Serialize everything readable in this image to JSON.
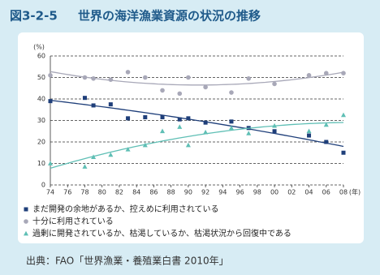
{
  "chart_data": {
    "type": "scatter",
    "figure_number": "図3-2-5",
    "title": "世界の海洋漁業資源の状況の推移",
    "ylabel": "(%)",
    "xlabel": "(年)",
    "xlim": [
      1974,
      2008
    ],
    "xticks": [
      {
        "value": 1974,
        "label": "74"
      },
      {
        "value": 1976,
        "label": "76"
      },
      {
        "value": 1978,
        "label": "78"
      },
      {
        "value": 1980,
        "label": "80"
      },
      {
        "value": 1982,
        "label": "82"
      },
      {
        "value": 1984,
        "label": "84"
      },
      {
        "value": 1986,
        "label": "86"
      },
      {
        "value": 1988,
        "label": "88"
      },
      {
        "value": 1990,
        "label": "90"
      },
      {
        "value": 1992,
        "label": "92"
      },
      {
        "value": 1994,
        "label": "94"
      },
      {
        "value": 1996,
        "label": "96"
      },
      {
        "value": 1998,
        "label": "98"
      },
      {
        "value": 2000,
        "label": "00"
      },
      {
        "value": 2002,
        "label": "02"
      },
      {
        "value": 2004,
        "label": "04"
      },
      {
        "value": 2006,
        "label": "06"
      },
      {
        "value": 2008,
        "label": "08"
      }
    ],
    "ylim": [
      0,
      60
    ],
    "yticks": [
      0,
      10,
      20,
      30,
      40,
      50,
      60
    ],
    "grid": true,
    "trend": true,
    "x": [
      1974,
      1978,
      1979,
      1981,
      1983,
      1985,
      1987,
      1989,
      1990,
      1992,
      1995,
      1997,
      2000,
      2004,
      2006,
      2008
    ],
    "series": [
      {
        "name": "まだ開発の余地があるか、控えめに利用されている",
        "color": "#1f3f7a",
        "marker": "square",
        "values": [
          39,
          40.5,
          37,
          37.5,
          31,
          31.5,
          31.5,
          30.5,
          31,
          29,
          29.5,
          26.5,
          25,
          23,
          20,
          15
        ]
      },
      {
        "name": "十分に利用されている",
        "color": "#a8a8b8",
        "marker": "circle",
        "values": [
          51,
          50,
          49.5,
          49,
          52.5,
          50,
          44,
          42.5,
          50,
          45.5,
          43,
          49.5,
          47,
          51,
          52,
          52
        ]
      },
      {
        "name": "過剰に開発されているか、枯渇しているか、枯渇状況から回復中である",
        "color": "#5fbfb5",
        "marker": "triangle",
        "values": [
          10,
          8.5,
          13,
          14,
          16.5,
          18.5,
          25,
          27,
          18.5,
          24.5,
          26.5,
          24,
          27.5,
          25,
          28,
          32.5
        ]
      }
    ],
    "source": "出典：FAO「世界漁業・養殖業白書 2010年」"
  }
}
